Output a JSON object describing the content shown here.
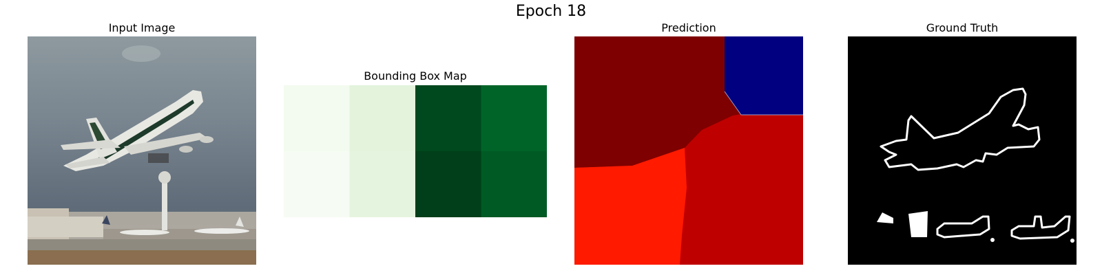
{
  "figure": {
    "title": "Epoch 18",
    "panels": [
      {
        "title": "Input Image"
      },
      {
        "title": "Bounding Box Map"
      },
      {
        "title": "Prediction"
      },
      {
        "title": "Ground Truth"
      }
    ]
  },
  "bbox_map": {
    "rows": 2,
    "cols": 4,
    "cell_colors": [
      [
        "#f3fbf0",
        "#e3f3dc",
        "#00481e",
        "#006428"
      ],
      [
        "#f6fcf3",
        "#e5f4de",
        "#003f19",
        "#005a24"
      ]
    ]
  },
  "prediction": {
    "colors": {
      "dark_red": "#7f0000",
      "navy": "#000080",
      "red": "#bf0000",
      "bright_red": "#ff1a00"
    }
  },
  "ground_truth": {
    "colors": {
      "background": "#000000",
      "outline": "#ffffff"
    }
  }
}
